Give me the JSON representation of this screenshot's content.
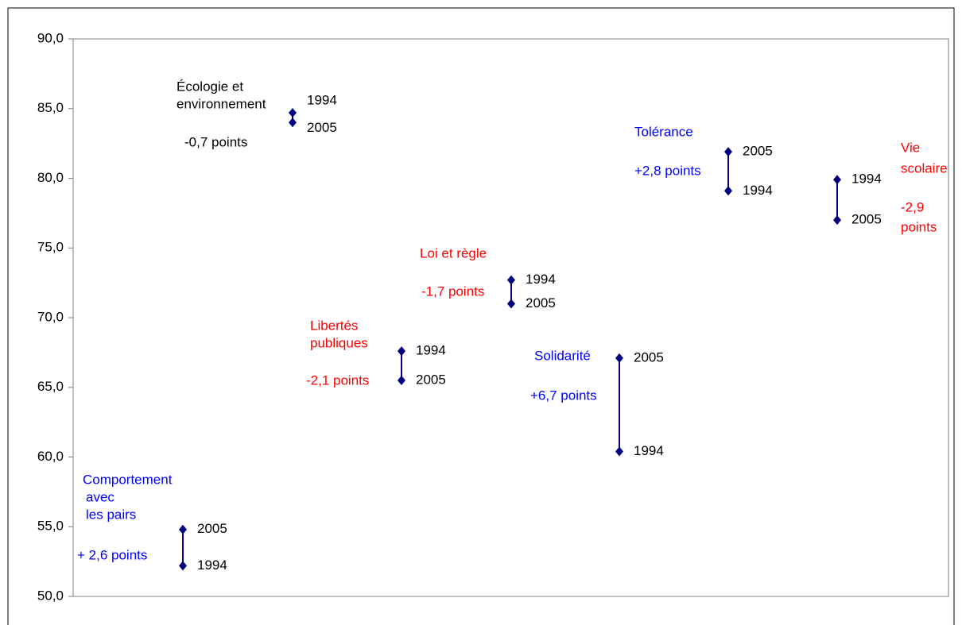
{
  "chart_data": {
    "type": "dot-range",
    "categories": [
      [
        "Comportement",
        "avec",
        "les pairs"
      ],
      [
        "Écologie et",
        "environnement"
      ],
      [
        "Libertés",
        "publiques"
      ],
      [
        "Loi et  règle"
      ],
      [
        "Solidarité"
      ],
      [
        "Tolérance"
      ],
      [
        "Vie",
        "scolaire"
      ]
    ],
    "annotations": [
      [
        "+ 2,6 points"
      ],
      [
        "-0,7 points"
      ],
      [
        "-2,1 points"
      ],
      [
        "-1,7 points"
      ],
      [
        "+6,7 points"
      ],
      [
        "+2,8 points"
      ],
      [
        "-2,9",
        "points"
      ]
    ],
    "label_colors": [
      "#0000ff",
      "#000000",
      "#ff0000",
      "#ff0000",
      "#0000ff",
      "#0000ff",
      "#ff0000"
    ],
    "series": [
      {
        "name": "1994",
        "color": "#000080",
        "values": [
          52.2,
          84.7,
          67.6,
          72.7,
          60.4,
          79.1,
          79.9
        ]
      },
      {
        "name": "2005",
        "color": "#000080",
        "values": [
          54.8,
          84.0,
          65.5,
          71.0,
          67.1,
          81.9,
          77.0
        ]
      }
    ],
    "ylim": [
      50,
      90
    ],
    "yticks": [
      {
        "value": 50,
        "label": "50,0"
      },
      {
        "value": 55,
        "label": "55,0"
      },
      {
        "value": 60,
        "label": "60,0"
      },
      {
        "value": 65,
        "label": "65,0"
      },
      {
        "value": 70,
        "label": "70,0"
      },
      {
        "value": 75,
        "label": "75,0"
      },
      {
        "value": 80,
        "label": "80,0"
      },
      {
        "value": 85,
        "label": "85,0"
      },
      {
        "value": 90,
        "label": "90,0"
      }
    ]
  }
}
